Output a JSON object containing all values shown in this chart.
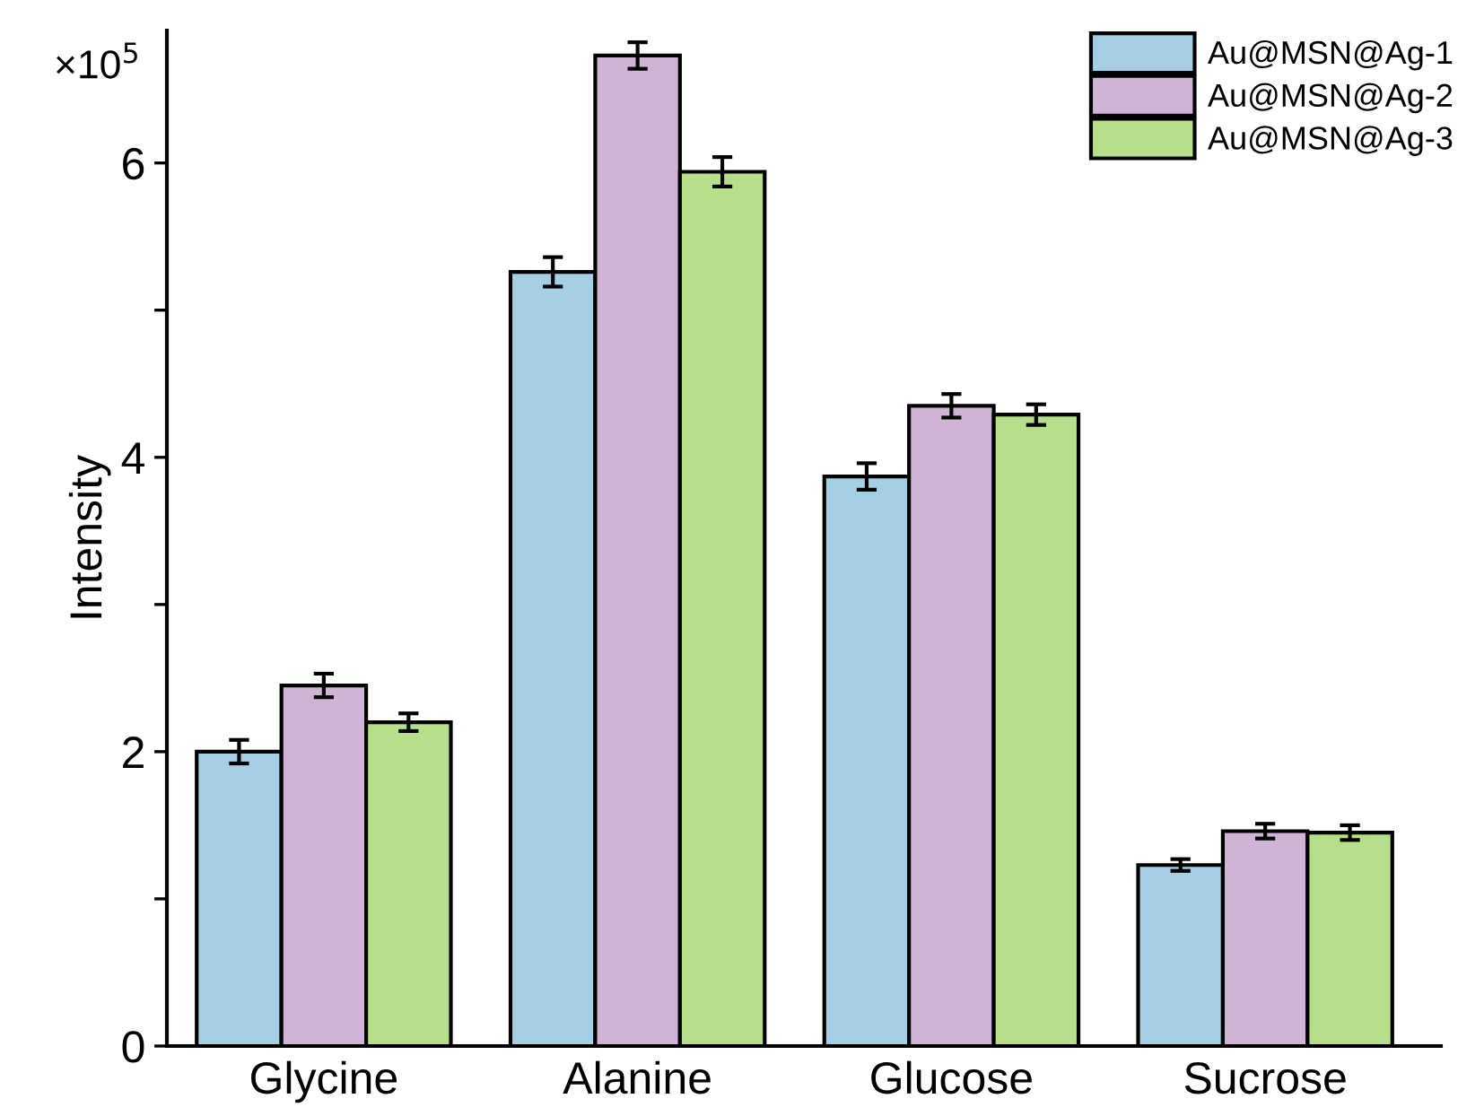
{
  "chart_data": {
    "type": "bar",
    "ylabel": "Intensity",
    "annotations": [
      "×10$^{5}$"
    ],
    "categories": [
      "Glycine",
      "Alanine",
      "Glucose",
      "Sucrose"
    ],
    "series": [
      {
        "name": "Au@MSN@Ag-1",
        "color": "#a6cee4",
        "values": [
          2.0,
          5.26,
          3.87,
          1.23
        ],
        "errors": [
          0.08,
          0.1,
          0.09,
          0.04
        ]
      },
      {
        "name": "Au@MSN@Ag-2",
        "color": "#cfb4d6",
        "values": [
          2.45,
          6.73,
          4.35,
          1.46
        ],
        "errors": [
          0.08,
          0.09,
          0.08,
          0.05
        ]
      },
      {
        "name": "Au@MSN@Ag-3",
        "color": "#b6de8b",
        "values": [
          2.2,
          5.94,
          4.29,
          1.45
        ],
        "errors": [
          0.06,
          0.1,
          0.07,
          0.05
        ]
      }
    ],
    "ylim": [
      0,
      6.9
    ],
    "yticks": [
      0,
      {
        "value": 1,
        "label": null
      },
      2,
      {
        "value": 3,
        "label": null
      },
      4,
      {
        "value": 5,
        "label": null
      },
      6
    ],
    "grid": false,
    "legend": "top right"
  }
}
